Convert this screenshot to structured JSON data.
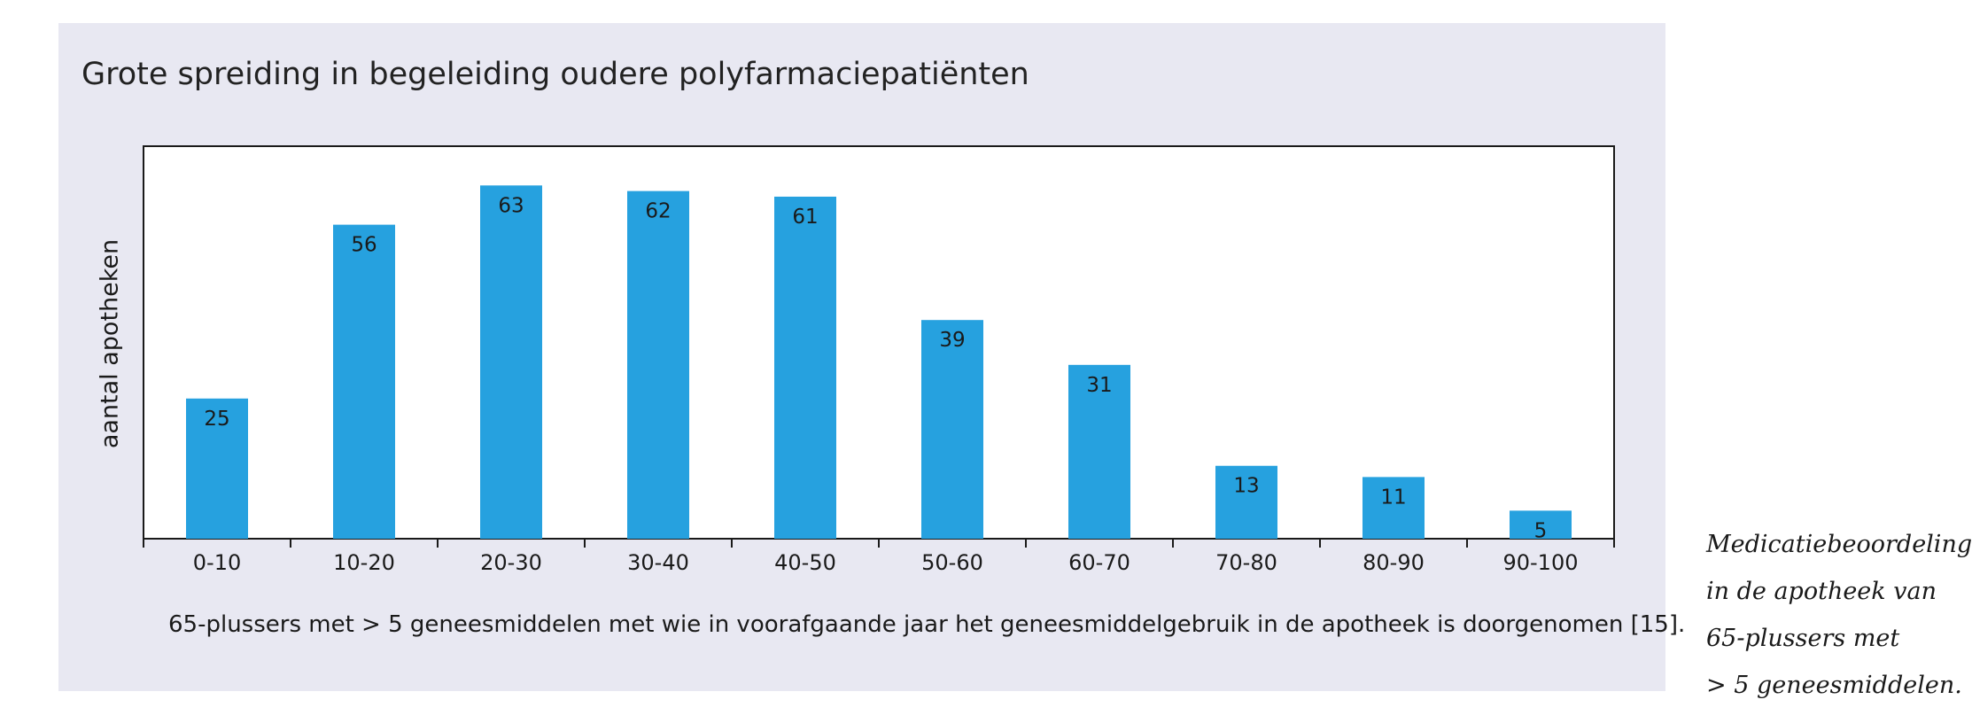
{
  "caption_lines": [
    "Medicatiebeoordeling",
    "in de apotheek van",
    "65-plussers met",
    "> 5 geneesmiddelen."
  ],
  "colors": {
    "panel_background": "#e8e8f2",
    "bar": "#26a1df",
    "plot_background": "#ffffff"
  },
  "chart_data": {
    "type": "bar",
    "title": "Grote spreiding in begeleiding oudere polyfarmaciepatiënten",
    "xlabel": "65-plussers met > 5 geneesmiddelen met wie in voorafgaande jaar het geneesmiddelgebruik in de apotheek is doorgenomen [15].",
    "ylabel": "aantal apotheken",
    "categories": [
      "0-10",
      "10-20",
      "20-30",
      "30-40",
      "40-50",
      "50-60",
      "60-70",
      "70-80",
      "80-90",
      "90-100"
    ],
    "values": [
      25,
      56,
      63,
      62,
      61,
      39,
      31,
      13,
      11,
      5
    ],
    "value_labels": [
      "25",
      "56",
      "63",
      "62",
      "61",
      "39",
      "31",
      "13",
      "11",
      "5"
    ],
    "ylim": [
      0,
      70
    ],
    "grid": false,
    "legend": "none",
    "y_ticks_shown": false,
    "data_labels": "inside-top"
  }
}
